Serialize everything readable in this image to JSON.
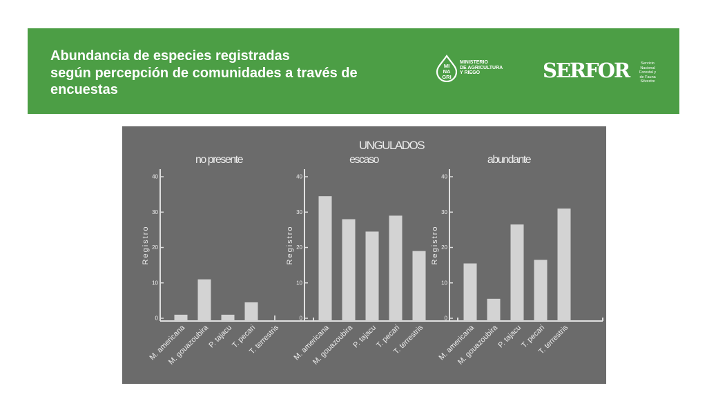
{
  "header": {
    "title_lines": [
      "Abundancia de especies registradas",
      "según percepción de comunidades a través de",
      "encuestas"
    ]
  },
  "logos": {
    "minagri": {
      "mark_lines": [
        "MI",
        "NA",
        "GRI"
      ],
      "text_lines": [
        "MINISTERIO",
        "DE AGRICULTURA",
        "Y RIEGO"
      ]
    },
    "serfor": {
      "wordmark": "SERFOR",
      "subtitle_lines": [
        "Servicio",
        "Nacional",
        "Forestal y",
        "de Fauna",
        "Silvestre"
      ]
    }
  },
  "colors": {
    "banner": "#4c9e45",
    "panel": "#6b6b6b",
    "bar": "#d3d3d3",
    "axis": "#e0e0e0",
    "text_light": "#ececec"
  },
  "chart_data": {
    "type": "bar",
    "title": "UNGULADOS",
    "categories": [
      "M. americana",
      "M. gouazoubira",
      "P. tajacu",
      "T. pecari",
      "T. terrestris"
    ],
    "ylabel": "Registro",
    "ylim": [
      0,
      40
    ],
    "yticks": [
      0,
      10,
      20,
      30,
      40
    ],
    "grid": false,
    "panels": [
      {
        "name": "no presente",
        "values": [
          1,
          11,
          1,
          4.5,
          0
        ]
      },
      {
        "name": "escaso",
        "values": [
          34.5,
          28,
          24.5,
          29,
          19
        ]
      },
      {
        "name": "abundante",
        "values": [
          15.5,
          5.5,
          26.5,
          16.5,
          31
        ]
      }
    ]
  }
}
